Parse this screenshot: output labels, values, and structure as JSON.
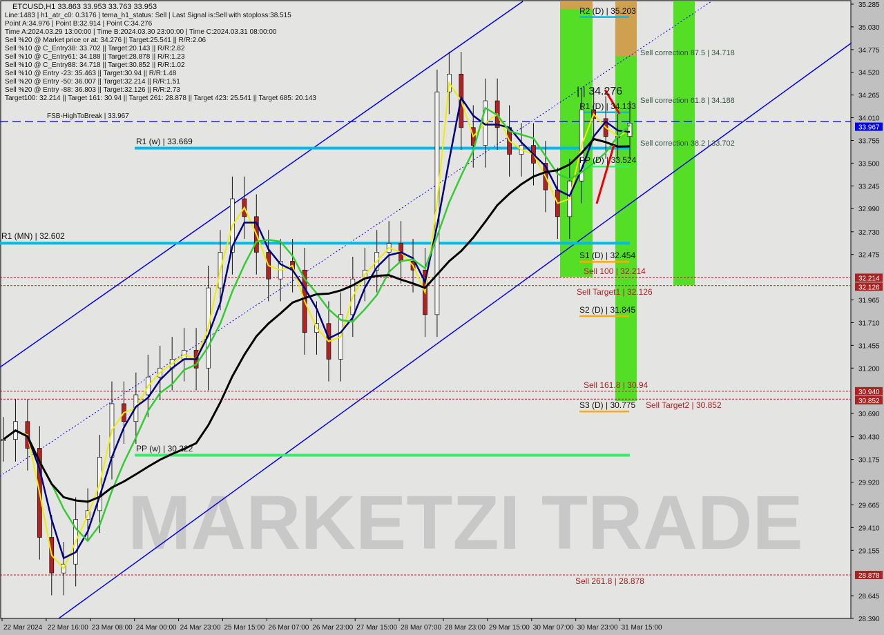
{
  "header": {
    "title": "ETCUSD,H1  33.863 33.953 33.763 33.953",
    "lines": [
      "Line:1483 | h1_atr_c0: 0.3176 | tema_h1_status: Sell | Last Signal is:Sell with stoploss:38.515",
      "Point A:34.976 | Point B:32.914 | Point C:34.276",
      "Time A:2024.03.29 13:00:00 | Time B:2024.03.30 23:00:00 | Time C:2024.03.31 08:00:00",
      "Sell %20 @ Market price or at: 34.276 || Target:25.541 || R/R:2.06",
      "Sell %10 @ C_Entry38: 33.702 || Target:20.143 || R/R:2.82",
      "Sell %10 @ C_Entry61: 34.188 || Target:28.878 || R/R:1.23",
      "Sell %10 @ C_Entry88: 34.718 || Target:30.852 || R/R:1.02",
      "Sell %10 @ Entry -23: 35.463 || Target:30.94 || R/R:1.48",
      "Sell %20 @ Entry -50: 36.007 || Target:32.214 || R/R:1.51",
      "Sell %20 @ Entry -88: 36.803 || Target:32.126 || R/R:2.73",
      "Target100: 32.214 || Target 161: 30.94 || Target 261: 28.878 || Target 423: 25.541 || Target 685: 20.143"
    ]
  },
  "watermark": "MARKETZI TRADE",
  "colors": {
    "background": "#e4e4e2",
    "bull_zone": "#44dd11",
    "sell_zone": "#dd9955",
    "level_cyan": "#00bbee",
    "channel": "#0000ee",
    "target_red": "#aa2222",
    "pivot_green": "#33ee66"
  },
  "chart_data": {
    "type": "candlestick",
    "symbol": "ETCUSD",
    "timeframe": "H1",
    "ylim": [
      28.39,
      35.285
    ],
    "y_ticks": [
      35.285,
      35.03,
      34.775,
      34.52,
      34.265,
      34.01,
      33.755,
      33.5,
      33.245,
      32.99,
      32.73,
      32.475,
      31.965,
      31.71,
      31.455,
      31.2,
      30.69,
      30.43,
      30.175,
      29.92,
      29.665,
      29.41,
      29.155,
      28.645,
      28.39
    ],
    "x_ticks": [
      "22 Mar 2024",
      "22 Mar 16:00",
      "23 Mar 08:00",
      "24 Mar 00:00",
      "24 Mar 23:00",
      "25 Mar 15:00",
      "26 Mar 07:00",
      "26 Mar 23:00",
      "27 Mar 15:00",
      "28 Mar 07:00",
      "28 Mar 23:00",
      "29 Mar 15:00",
      "30 Mar 07:00",
      "30 Mar 23:00",
      "31 Mar 15:00"
    ],
    "approx_close": [
      30.4,
      30.6,
      30.3,
      29.3,
      28.9,
      29.0,
      29.5,
      29.6,
      30.2,
      30.8,
      30.6,
      30.9,
      31.1,
      31.2,
      31.3,
      31.4,
      31.2,
      32.1,
      32.5,
      33.1,
      32.9,
      32.5,
      32.2,
      32.4,
      32.3,
      31.6,
      31.7,
      31.3,
      31.8,
      32.2,
      32.3,
      32.5,
      32.6,
      32.4,
      32.3,
      31.8,
      34.3,
      34.5,
      33.9,
      33.7,
      34.2,
      33.9,
      33.6,
      33.7,
      33.5,
      33.2,
      32.9,
      33.3,
      34.1,
      34.0,
      33.8,
      33.8,
      33.95
    ],
    "current_price": 33.967,
    "price_tags": [
      {
        "value": "33.967",
        "color": "#0000ee"
      },
      {
        "value": "32.214",
        "color": "#aa2222"
      },
      {
        "value": "32.126",
        "color": "#aa2222"
      },
      {
        "value": "30.940",
        "color": "#aa2222"
      },
      {
        "value": "30.852",
        "color": "#aa2222"
      },
      {
        "value": "28.878",
        "color": "#aa2222"
      }
    ],
    "levels": [
      {
        "label": "FSB-HighToBreak | 33.967",
        "value": 33.967,
        "style": "dashed-blue"
      },
      {
        "label": "R1 (w) | 33.669",
        "value": 33.669,
        "style": "cyan"
      },
      {
        "label": "R1 (MN) | 32.602",
        "value": 32.602,
        "style": "cyan"
      },
      {
        "label": "PP (w) | 30.222",
        "value": 30.222,
        "style": "green"
      },
      {
        "label": "R2 (D) | 35.203",
        "value": 35.203,
        "style": "cyan-short"
      },
      {
        "label": "R1 (D) | 34.133",
        "value": 34.133,
        "style": "cyan-short"
      },
      {
        "label": "PP (D) | 33.524",
        "value": 33.524,
        "style": "green-short"
      },
      {
        "label": "S1 (D) | 32.454",
        "value": 32.454,
        "style": "orange-short"
      },
      {
        "label": "S2 (D) | 31.845",
        "value": 31.845,
        "style": "orange-short"
      },
      {
        "label": "S3 (D) | 30.775",
        "value": 30.775,
        "style": "orange-short"
      },
      {
        "label": "Sell correction 87.5 | 34.718",
        "value": 34.718,
        "style": "text"
      },
      {
        "label": "Sell correction 61.8 | 34.188",
        "value": 34.188,
        "style": "text"
      },
      {
        "label": "Sell correction 38.2 | 33.702",
        "value": 33.702,
        "style": "text"
      },
      {
        "label": "| | 34.276",
        "value": 34.276,
        "style": "text-large"
      },
      {
        "label": "Sell 100 | 32.214",
        "value": 32.214,
        "style": "red-dotted"
      },
      {
        "label": "Sell Target1 | 32.126",
        "value": 32.126,
        "style": "red-dotted"
      },
      {
        "label": "Sell 161.8 | 30.94",
        "value": 30.94,
        "style": "red-dotted"
      },
      {
        "label": "Sell Target2 | 30.852",
        "value": 30.852,
        "style": "red-dotted"
      },
      {
        "label": "Sell 261.8 | 28.878",
        "value": 28.878,
        "style": "red-dotted"
      }
    ]
  }
}
